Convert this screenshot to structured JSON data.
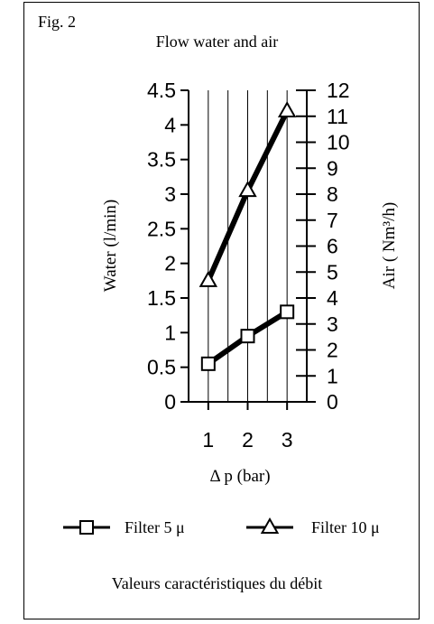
{
  "figure_label": "Fig. 2",
  "caption": "Valeurs caractéristiques du débit",
  "chart_data": {
    "type": "line",
    "title": "Flow water and air",
    "xlabel": "Δ p (bar)",
    "ylabel": "Water (l/min)",
    "y2label": "Air ( Nm³/h)",
    "x": [
      1,
      2,
      3
    ],
    "x_ticks": [
      "1",
      "2",
      "3"
    ],
    "xlim": [
      0.5,
      3.5
    ],
    "ylim": [
      0,
      4.5
    ],
    "y_ticks": [
      "0",
      "0.5",
      "1",
      "1.5",
      "2",
      "2.5",
      "3",
      "3.5",
      "4",
      "4.5"
    ],
    "y2lim": [
      0,
      12
    ],
    "y2_ticks": [
      "0",
      "1",
      "2",
      "3",
      "4",
      "5",
      "6",
      "7",
      "8",
      "9",
      "10",
      "11",
      "12"
    ],
    "grid": "vertical",
    "legend_position": "bottom",
    "series": [
      {
        "name": "Filter 5 μ",
        "axis": "left",
        "marker": "square",
        "values": [
          0.55,
          0.95,
          1.3
        ]
      },
      {
        "name": "Filter 10 μ",
        "axis": "left",
        "marker": "triangle",
        "values": [
          1.75,
          3.05,
          4.2
        ]
      }
    ]
  }
}
